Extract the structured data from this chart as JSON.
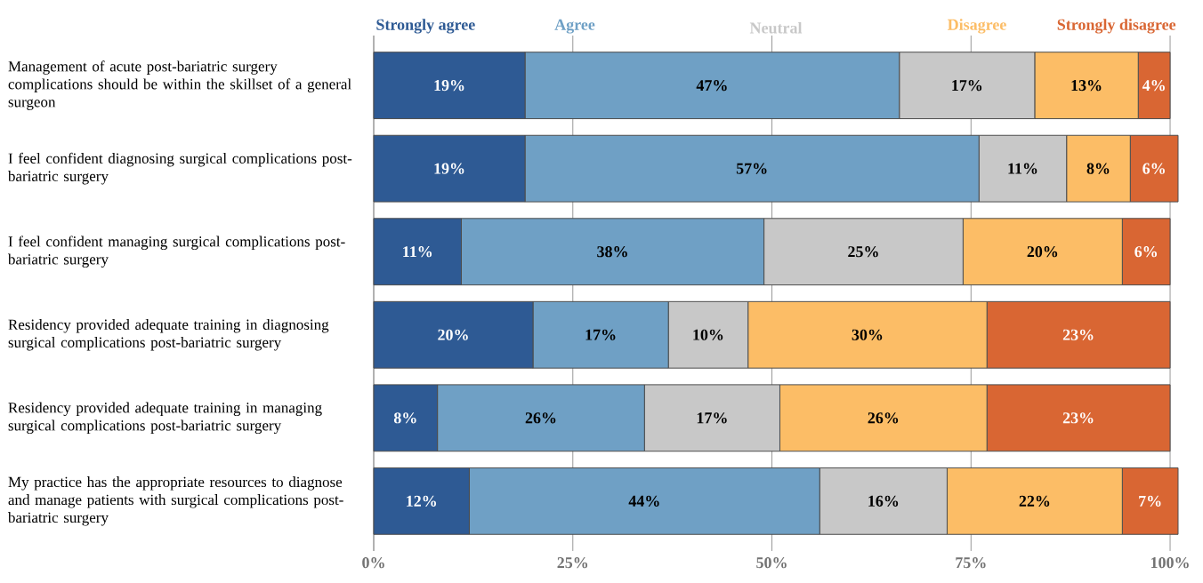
{
  "chart_data": {
    "type": "bar",
    "orientation": "horizontal",
    "stacked": true,
    "categories": [
      "Management of acute post-bariatric surgery complications should be within the skillset of a general surgeon",
      "I feel confident diagnosing surgical complications post-bariatric surgery",
      "I feel confident managing surgical complications post-bariatric surgery",
      "Residency provided adequate training in diagnosing surgical complications post-bariatric surgery",
      "Residency provided adequate training in managing surgical complications post-bariatric surgery",
      "My practice has the appropriate resources to diagnose and manage patients with surgical complications post-bariatric surgery"
    ],
    "series": [
      {
        "name": "Strongly agree",
        "color": "#2e5a94",
        "values": [
          19,
          19,
          11,
          20,
          8,
          12
        ],
        "value_labels": [
          "19%",
          "19%",
          "11%",
          "20%",
          "8%",
          "12%"
        ]
      },
      {
        "name": "Agree",
        "color": "#6fa0c5",
        "values": [
          47,
          57,
          38,
          17,
          26,
          44
        ],
        "value_labels": [
          "47%",
          "57%",
          "38%",
          "17%",
          "26%",
          "44%"
        ]
      },
      {
        "name": "Neutral",
        "color": "#c8c8c8",
        "values": [
          17,
          11,
          25,
          10,
          17,
          16
        ],
        "value_labels": [
          "17%",
          "11%",
          "25%",
          "10%",
          "17%",
          "16%"
        ]
      },
      {
        "name": "Disagree",
        "color": "#fcbd66",
        "values": [
          13,
          8,
          20,
          30,
          26,
          22
        ],
        "value_labels": [
          "13%",
          "8%",
          "20%",
          "30%",
          "26%",
          "22%"
        ]
      },
      {
        "name": "Strongly disagree",
        "color": "#d96633",
        "values": [
          4,
          6,
          6,
          23,
          23,
          7
        ],
        "value_labels": [
          "4%",
          "6%",
          "6%",
          "23%",
          "23%",
          "7%"
        ]
      }
    ],
    "xlim": [
      0,
      101
    ],
    "xticks": [
      {
        "value": 0,
        "label": "0%"
      },
      {
        "value": 25,
        "label": "25%"
      },
      {
        "value": 50,
        "label": "50%"
      },
      {
        "value": 75,
        "label": "75%"
      },
      {
        "value": 100,
        "label": "100%"
      }
    ],
    "grid": "x"
  }
}
